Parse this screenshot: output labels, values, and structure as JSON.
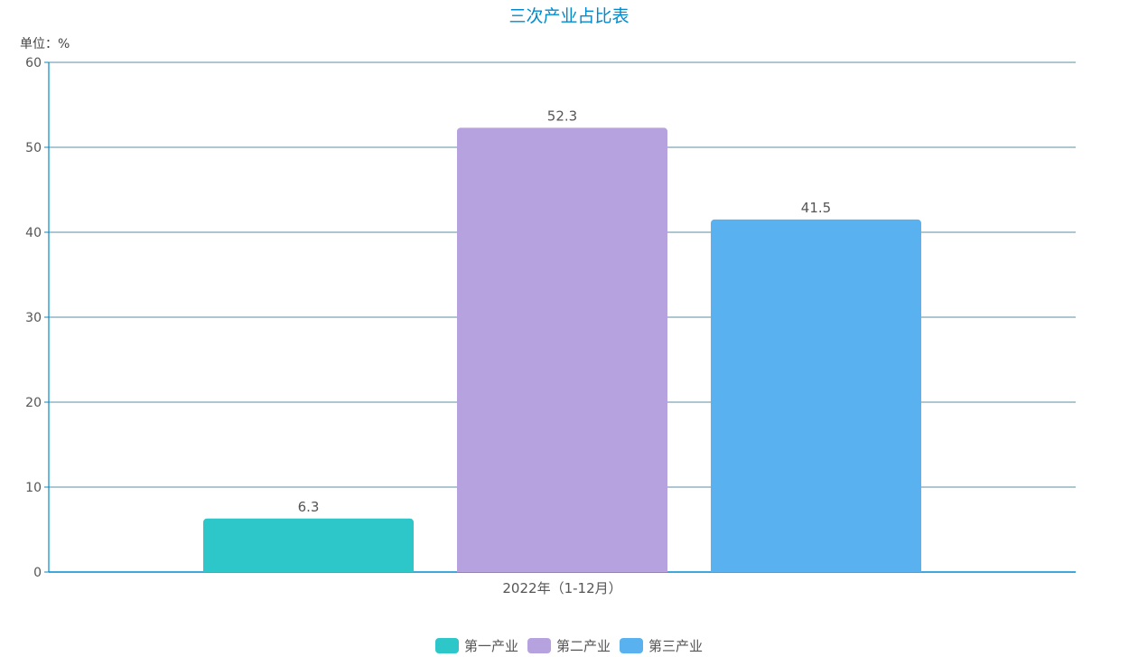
{
  "chart_data": {
    "type": "bar",
    "title": "三次产业占比表",
    "unit_label": "单位：%",
    "categories": [
      "2022年（1-12月）"
    ],
    "series": [
      {
        "name": "第一产业",
        "values": [
          6.3
        ],
        "color": "#2ec7c9"
      },
      {
        "name": "第二产业",
        "values": [
          52.3
        ],
        "color": "#b6a2de"
      },
      {
        "name": "第三产业",
        "values": [
          41.5
        ],
        "color": "#5ab1ef"
      }
    ],
    "ylim": [
      0,
      60
    ],
    "yticks": [
      0,
      10,
      20,
      30,
      40,
      50,
      60
    ],
    "grid": true,
    "legend_position": "bottom-center",
    "colors": {
      "title": "#008acd",
      "axis": "#008acd",
      "grid": "#5b8ea1",
      "text": "#555555"
    }
  }
}
